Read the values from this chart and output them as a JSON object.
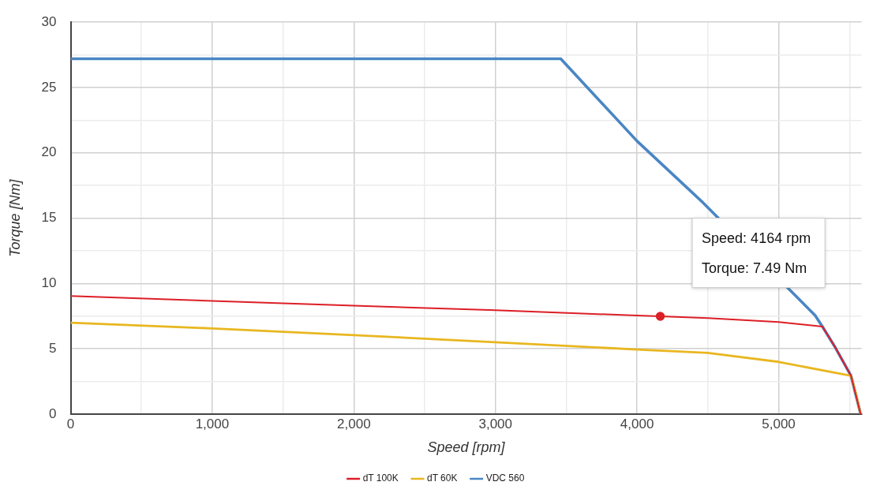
{
  "chart_data": {
    "type": "line",
    "xlabel": "Speed [rpm]",
    "ylabel": "Torque [Nm]",
    "xlim": [
      0,
      5585
    ],
    "ylim": [
      0,
      30
    ],
    "xticks": [
      {
        "value": 0,
        "label": "0"
      },
      {
        "value": 500,
        "label": null
      },
      {
        "value": 1000,
        "label": "1,000"
      },
      {
        "value": 1500,
        "label": null
      },
      {
        "value": 2000,
        "label": "2,000"
      },
      {
        "value": 2500,
        "label": null
      },
      {
        "value": 3000,
        "label": "3,000"
      },
      {
        "value": 3500,
        "label": null
      },
      {
        "value": 4000,
        "label": "4,000"
      },
      {
        "value": 4500,
        "label": null
      },
      {
        "value": 5000,
        "label": "5,000"
      },
      {
        "value": 5500,
        "label": null
      }
    ],
    "yticks": [
      0,
      {
        "value": 2.5,
        "label": null
      },
      5,
      {
        "value": 7.5,
        "label": null
      },
      10,
      {
        "value": 12.5,
        "label": null
      },
      15,
      {
        "value": 17.5,
        "label": null
      },
      20,
      {
        "value": 22.5,
        "label": null
      },
      25,
      {
        "value": 27.5,
        "label": null
      },
      30
    ],
    "grid": true,
    "legend": "bottom",
    "marker": "none",
    "line_style": "solid",
    "series": [
      {
        "name": "dT 100K",
        "color": "#dc1f26",
        "x": [
          0,
          1000,
          2000,
          3000,
          4000,
          4164,
          4500,
          5000,
          5309,
          5400,
          5511,
          5579
        ],
        "values": [
          9.04,
          8.67,
          8.3,
          7.95,
          7.55,
          7.49,
          7.35,
          7.05,
          6.7,
          5.1,
          2.93,
          0
        ]
      },
      {
        "name": "dT 60K",
        "color": "#e8b720",
        "x": [
          0,
          1000,
          2000,
          3000,
          4000,
          4500,
          5000,
          5511,
          5545,
          5579
        ],
        "values": [
          7.0,
          6.56,
          6.05,
          5.5,
          4.95,
          4.69,
          4.0,
          2.93,
          1.6,
          0
        ]
      },
      {
        "name": "VDC 560",
        "color": "#4a86c4",
        "x": [
          0,
          3461,
          4000,
          4455,
          5258,
          5309,
          5400,
          5511,
          5579
        ],
        "values": [
          27.2,
          27.2,
          20.9,
          16.3,
          7.55,
          6.7,
          5.1,
          2.93,
          0
        ]
      },
      {
        "type": "scatter",
        "marker": "circle",
        "color": "#dc1f26",
        "x": [
          4164
        ],
        "values": [
          7.49
        ]
      }
    ],
    "annotations": [
      "Speed: 4164 rpm",
      "Torque: 7.49 Nm"
    ]
  }
}
